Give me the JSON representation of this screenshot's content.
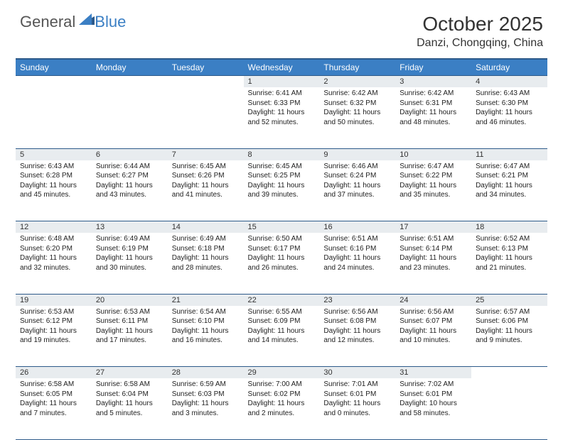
{
  "brand": {
    "part1": "General",
    "part2": "Blue"
  },
  "title": "October 2025",
  "location": "Danzi, Chongqing, China",
  "colors": {
    "header_bg": "#3b7fc4",
    "header_border": "#2d5a8a",
    "daynum_bg": "#e8ecef",
    "text": "#222222",
    "brand_gray": "#555555",
    "brand_blue": "#3b7fc4"
  },
  "typography": {
    "title_fontsize": 28,
    "location_fontsize": 16,
    "dayheader_fontsize": 12,
    "daynum_fontsize": 11,
    "cell_fontsize": 10
  },
  "day_headers": [
    "Sunday",
    "Monday",
    "Tuesday",
    "Wednesday",
    "Thursday",
    "Friday",
    "Saturday"
  ],
  "weeks": [
    {
      "nums": [
        "",
        "",
        "",
        "1",
        "2",
        "3",
        "4"
      ],
      "cells": [
        null,
        null,
        null,
        {
          "sunrise": "6:41 AM",
          "sunset": "6:33 PM",
          "daylight": "11 hours and 52 minutes."
        },
        {
          "sunrise": "6:42 AM",
          "sunset": "6:32 PM",
          "daylight": "11 hours and 50 minutes."
        },
        {
          "sunrise": "6:42 AM",
          "sunset": "6:31 PM",
          "daylight": "11 hours and 48 minutes."
        },
        {
          "sunrise": "6:43 AM",
          "sunset": "6:30 PM",
          "daylight": "11 hours and 46 minutes."
        }
      ]
    },
    {
      "nums": [
        "5",
        "6",
        "7",
        "8",
        "9",
        "10",
        "11"
      ],
      "cells": [
        {
          "sunrise": "6:43 AM",
          "sunset": "6:28 PM",
          "daylight": "11 hours and 45 minutes."
        },
        {
          "sunrise": "6:44 AM",
          "sunset": "6:27 PM",
          "daylight": "11 hours and 43 minutes."
        },
        {
          "sunrise": "6:45 AM",
          "sunset": "6:26 PM",
          "daylight": "11 hours and 41 minutes."
        },
        {
          "sunrise": "6:45 AM",
          "sunset": "6:25 PM",
          "daylight": "11 hours and 39 minutes."
        },
        {
          "sunrise": "6:46 AM",
          "sunset": "6:24 PM",
          "daylight": "11 hours and 37 minutes."
        },
        {
          "sunrise": "6:47 AM",
          "sunset": "6:22 PM",
          "daylight": "11 hours and 35 minutes."
        },
        {
          "sunrise": "6:47 AM",
          "sunset": "6:21 PM",
          "daylight": "11 hours and 34 minutes."
        }
      ]
    },
    {
      "nums": [
        "12",
        "13",
        "14",
        "15",
        "16",
        "17",
        "18"
      ],
      "cells": [
        {
          "sunrise": "6:48 AM",
          "sunset": "6:20 PM",
          "daylight": "11 hours and 32 minutes."
        },
        {
          "sunrise": "6:49 AM",
          "sunset": "6:19 PM",
          "daylight": "11 hours and 30 minutes."
        },
        {
          "sunrise": "6:49 AM",
          "sunset": "6:18 PM",
          "daylight": "11 hours and 28 minutes."
        },
        {
          "sunrise": "6:50 AM",
          "sunset": "6:17 PM",
          "daylight": "11 hours and 26 minutes."
        },
        {
          "sunrise": "6:51 AM",
          "sunset": "6:16 PM",
          "daylight": "11 hours and 24 minutes."
        },
        {
          "sunrise": "6:51 AM",
          "sunset": "6:14 PM",
          "daylight": "11 hours and 23 minutes."
        },
        {
          "sunrise": "6:52 AM",
          "sunset": "6:13 PM",
          "daylight": "11 hours and 21 minutes."
        }
      ]
    },
    {
      "nums": [
        "19",
        "20",
        "21",
        "22",
        "23",
        "24",
        "25"
      ],
      "cells": [
        {
          "sunrise": "6:53 AM",
          "sunset": "6:12 PM",
          "daylight": "11 hours and 19 minutes."
        },
        {
          "sunrise": "6:53 AM",
          "sunset": "6:11 PM",
          "daylight": "11 hours and 17 minutes."
        },
        {
          "sunrise": "6:54 AM",
          "sunset": "6:10 PM",
          "daylight": "11 hours and 16 minutes."
        },
        {
          "sunrise": "6:55 AM",
          "sunset": "6:09 PM",
          "daylight": "11 hours and 14 minutes."
        },
        {
          "sunrise": "6:56 AM",
          "sunset": "6:08 PM",
          "daylight": "11 hours and 12 minutes."
        },
        {
          "sunrise": "6:56 AM",
          "sunset": "6:07 PM",
          "daylight": "11 hours and 10 minutes."
        },
        {
          "sunrise": "6:57 AM",
          "sunset": "6:06 PM",
          "daylight": "11 hours and 9 minutes."
        }
      ]
    },
    {
      "nums": [
        "26",
        "27",
        "28",
        "29",
        "30",
        "31",
        ""
      ],
      "cells": [
        {
          "sunrise": "6:58 AM",
          "sunset": "6:05 PM",
          "daylight": "11 hours and 7 minutes."
        },
        {
          "sunrise": "6:58 AM",
          "sunset": "6:04 PM",
          "daylight": "11 hours and 5 minutes."
        },
        {
          "sunrise": "6:59 AM",
          "sunset": "6:03 PM",
          "daylight": "11 hours and 3 minutes."
        },
        {
          "sunrise": "7:00 AM",
          "sunset": "6:02 PM",
          "daylight": "11 hours and 2 minutes."
        },
        {
          "sunrise": "7:01 AM",
          "sunset": "6:01 PM",
          "daylight": "11 hours and 0 minutes."
        },
        {
          "sunrise": "7:02 AM",
          "sunset": "6:01 PM",
          "daylight": "10 hours and 58 minutes."
        },
        null
      ]
    }
  ]
}
